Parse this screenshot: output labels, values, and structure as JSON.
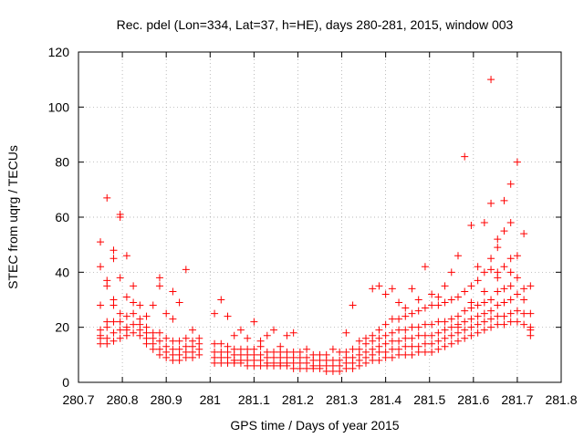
{
  "chart_data": {
    "type": "scatter",
    "title": "Rec. pdel (Lon=334, Lat=37, h=HE), days 280-281, 2015, window 003",
    "xlabel": "GPS time / Days of year 2015",
    "ylabel": "STEC from uqrg / TECUs",
    "xlim": [
      280.7,
      281.8
    ],
    "ylim": [
      0,
      120
    ],
    "xticks": [
      280.7,
      280.8,
      280.9,
      281.0,
      281.1,
      281.2,
      281.3,
      281.4,
      281.5,
      281.6,
      281.7,
      281.8
    ],
    "xtick_labels": [
      "280.7",
      "280.8",
      "280.9",
      "281",
      "281.1",
      "281.2",
      "281.3",
      "281.4",
      "281.5",
      "281.6",
      "281.7",
      "281.8"
    ],
    "yticks": [
      0,
      20,
      40,
      60,
      80,
      100,
      120
    ],
    "ytick_labels": [
      "0",
      "20",
      "40",
      "60",
      "80",
      "100",
      "120"
    ],
    "grid": true,
    "marker": "plus",
    "series_color": "#ff0000",
    "x": [
      280.75,
      280.75,
      280.75,
      280.75,
      280.75,
      280.75,
      280.75,
      280.765,
      280.765,
      280.765,
      280.765,
      280.765,
      280.765,
      280.765,
      280.78,
      280.78,
      280.78,
      280.78,
      280.78,
      280.78,
      280.78,
      280.795,
      280.795,
      280.795,
      280.795,
      280.795,
      280.795,
      280.795,
      280.81,
      280.81,
      280.81,
      280.81,
      280.81,
      280.81,
      280.825,
      280.825,
      280.825,
      280.825,
      280.825,
      280.84,
      280.84,
      280.84,
      280.84,
      280.84,
      280.855,
      280.855,
      280.855,
      280.855,
      280.855,
      280.87,
      280.87,
      280.87,
      280.87,
      280.87,
      280.885,
      280.885,
      280.885,
      280.885,
      280.885,
      280.885,
      280.9,
      280.9,
      280.9,
      280.9,
      280.9,
      280.915,
      280.915,
      280.915,
      280.915,
      280.915,
      280.915,
      280.93,
      280.93,
      280.93,
      280.93,
      280.93,
      280.945,
      280.945,
      280.945,
      280.945,
      280.945,
      280.96,
      280.96,
      280.96,
      280.96,
      280.96,
      280.975,
      280.975,
      280.975,
      280.975,
      281.01,
      281.01,
      281.01,
      281.01,
      281.01,
      281.025,
      281.025,
      281.025,
      281.025,
      281.025,
      281.04,
      281.04,
      281.04,
      281.04,
      281.04,
      281.055,
      281.055,
      281.055,
      281.055,
      281.055,
      281.07,
      281.07,
      281.07,
      281.07,
      281.07,
      281.085,
      281.085,
      281.085,
      281.085,
      281.085,
      281.1,
      281.1,
      281.1,
      281.1,
      281.1,
      281.115,
      281.115,
      281.115,
      281.115,
      281.115,
      281.13,
      281.13,
      281.13,
      281.13,
      281.13,
      281.145,
      281.145,
      281.145,
      281.145,
      281.145,
      281.16,
      281.16,
      281.16,
      281.16,
      281.16,
      281.175,
      281.175,
      281.175,
      281.175,
      281.175,
      281.19,
      281.19,
      281.19,
      281.19,
      281.19,
      281.205,
      281.205,
      281.205,
      281.205,
      281.22,
      281.22,
      281.22,
      281.22,
      281.235,
      281.235,
      281.235,
      281.235,
      281.25,
      281.25,
      281.25,
      281.25,
      281.265,
      281.265,
      281.265,
      281.265,
      281.28,
      281.28,
      281.28,
      281.28,
      281.295,
      281.295,
      281.295,
      281.295,
      281.31,
      281.31,
      281.31,
      281.31,
      281.31,
      281.325,
      281.325,
      281.325,
      281.325,
      281.325,
      281.34,
      281.34,
      281.34,
      281.34,
      281.34,
      281.355,
      281.355,
      281.355,
      281.355,
      281.355,
      281.37,
      281.37,
      281.37,
      281.37,
      281.37,
      281.37,
      281.385,
      281.385,
      281.385,
      281.385,
      281.385,
      281.385,
      281.4,
      281.4,
      281.4,
      281.4,
      281.4,
      281.4,
      281.415,
      281.415,
      281.415,
      281.415,
      281.415,
      281.415,
      281.43,
      281.43,
      281.43,
      281.43,
      281.43,
      281.43,
      281.445,
      281.445,
      281.445,
      281.445,
      281.445,
      281.445,
      281.46,
      281.46,
      281.46,
      281.46,
      281.46,
      281.46,
      281.475,
      281.475,
      281.475,
      281.475,
      281.475,
      281.475,
      281.49,
      281.49,
      281.49,
      281.49,
      281.49,
      281.49,
      281.505,
      281.505,
      281.505,
      281.505,
      281.505,
      281.505,
      281.52,
      281.52,
      281.52,
      281.52,
      281.52,
      281.52,
      281.535,
      281.535,
      281.535,
      281.535,
      281.535,
      281.535,
      281.55,
      281.55,
      281.55,
      281.55,
      281.55,
      281.55,
      281.565,
      281.565,
      281.565,
      281.565,
      281.565,
      281.565,
      281.565,
      281.58,
      281.58,
      281.58,
      281.58,
      281.58,
      281.58,
      281.595,
      281.595,
      281.595,
      281.595,
      281.595,
      281.595,
      281.595,
      281.61,
      281.61,
      281.61,
      281.61,
      281.61,
      281.61,
      281.625,
      281.625,
      281.625,
      281.625,
      281.625,
      281.625,
      281.625,
      281.64,
      281.64,
      281.64,
      281.64,
      281.64,
      281.64,
      281.64,
      281.64,
      281.655,
      281.655,
      281.655,
      281.655,
      281.655,
      281.655,
      281.655,
      281.655,
      281.67,
      281.67,
      281.67,
      281.67,
      281.67,
      281.67,
      281.67,
      281.67,
      281.685,
      281.685,
      281.685,
      281.685,
      281.685,
      281.685,
      281.685,
      281.685,
      281.7,
      281.7,
      281.7,
      281.7,
      281.7,
      281.7,
      281.715,
      281.715,
      281.715,
      281.715,
      281.715,
      281.73,
      281.73,
      281.73,
      281.73,
      281.73
    ],
    "y": [
      14,
      16,
      19,
      28,
      42,
      51,
      17,
      14,
      16,
      20,
      35,
      37,
      67,
      22,
      15,
      18,
      22,
      28,
      45,
      48,
      30,
      16,
      19,
      22,
      38,
      60,
      61,
      25,
      17,
      20,
      24,
      31,
      46,
      19,
      18,
      21,
      25,
      29,
      35,
      17,
      19,
      21,
      23,
      28,
      14,
      16,
      18,
      20,
      24,
      12,
      14,
      16,
      18,
      28,
      10,
      12,
      15,
      18,
      35,
      38,
      9,
      11,
      13,
      16,
      25,
      8,
      10,
      12,
      15,
      23,
      33,
      8,
      10,
      12,
      15,
      29,
      9,
      11,
      13,
      16,
      41,
      9,
      11,
      13,
      15,
      19,
      10,
      12,
      14,
      16,
      7,
      9,
      11,
      14,
      25,
      7,
      9,
      11,
      14,
      30,
      7,
      9,
      11,
      13,
      24,
      7,
      8,
      10,
      12,
      17,
      7,
      8,
      10,
      12,
      19,
      6,
      8,
      10,
      12,
      16,
      6,
      8,
      10,
      12,
      22,
      6,
      8,
      10,
      13,
      15,
      6,
      7,
      9,
      11,
      17,
      6,
      7,
      9,
      11,
      19,
      6,
      7,
      9,
      11,
      13,
      6,
      7,
      9,
      11,
      17,
      5,
      7,
      9,
      11,
      18,
      5,
      7,
      9,
      11,
      5,
      7,
      9,
      12,
      5,
      6,
      8,
      10,
      5,
      6,
      8,
      10,
      4,
      6,
      8,
      10,
      4,
      6,
      8,
      12,
      4,
      6,
      8,
      11,
      5,
      7,
      9,
      11,
      18,
      5,
      7,
      9,
      12,
      28,
      6,
      8,
      10,
      12,
      15,
      7,
      9,
      11,
      14,
      16,
      8,
      10,
      12,
      15,
      17,
      34,
      8,
      11,
      13,
      16,
      19,
      35,
      9,
      11,
      14,
      17,
      21,
      32,
      9,
      12,
      15,
      18,
      23,
      34,
      10,
      12,
      15,
      19,
      23,
      29,
      10,
      13,
      16,
      19,
      24,
      27,
      10,
      13,
      16,
      20,
      25,
      34,
      11,
      13,
      17,
      20,
      26,
      30,
      11,
      14,
      17,
      21,
      27,
      42,
      11,
      14,
      17,
      21,
      28,
      32,
      12,
      15,
      18,
      22,
      28,
      31,
      13,
      16,
      19,
      22,
      29,
      35,
      14,
      17,
      20,
      23,
      30,
      40,
      15,
      18,
      21,
      24,
      31,
      46,
      20,
      16,
      19,
      22,
      26,
      33,
      82,
      17,
      20,
      23,
      27,
      35,
      57,
      29,
      18,
      21,
      24,
      28,
      37,
      42,
      19,
      22,
      25,
      29,
      40,
      58,
      33,
      20,
      23,
      26,
      30,
      41,
      45,
      65,
      110,
      21,
      24,
      28,
      33,
      40,
      52,
      49,
      38,
      21,
      24,
      29,
      34,
      42,
      55,
      66,
      29,
      22,
      25,
      30,
      35,
      45,
      58,
      72,
      40,
      22,
      26,
      32,
      38,
      46,
      80,
      21,
      25,
      30,
      34,
      54,
      17,
      19,
      20,
      25,
      35
    ]
  }
}
